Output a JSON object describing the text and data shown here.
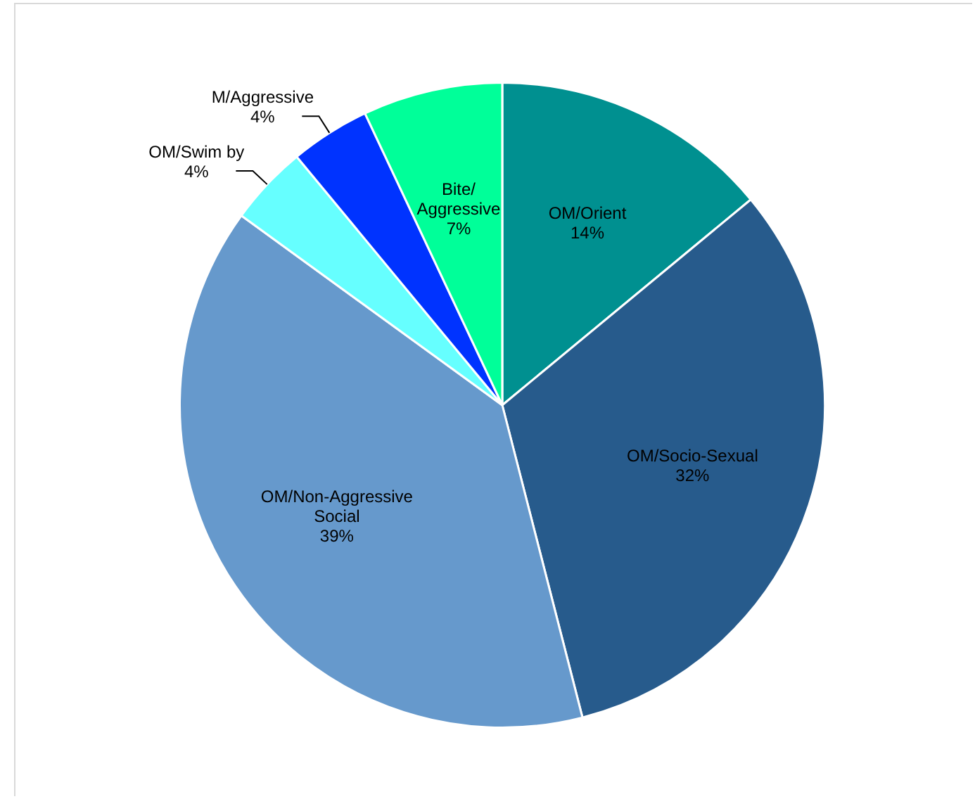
{
  "chart_data": {
    "type": "pie",
    "categories": [
      "OM/Orient",
      "OM/Socio-Sexual",
      "OM/Non-Aggressive Social",
      "OM/Swim by",
      "M/Aggressive",
      "Bite/Aggressive"
    ],
    "values": [
      14,
      32,
      39,
      4,
      4,
      7
    ],
    "colors": [
      "#009090",
      "#275b8c",
      "#6699cc",
      "#66ffff",
      "#0033ff",
      "#00ff99"
    ],
    "value_labels": [
      "14%",
      "32%",
      "39%",
      "4%",
      "4%",
      "7%"
    ],
    "legend": false
  }
}
